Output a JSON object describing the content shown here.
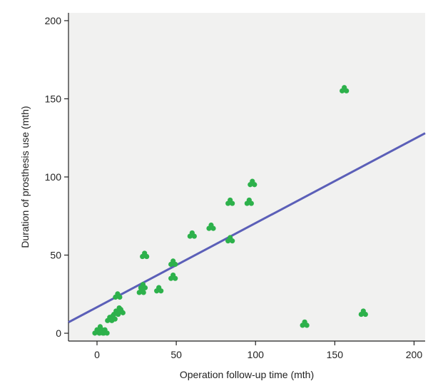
{
  "chart_data": {
    "type": "scatter",
    "title": "",
    "xlabel": "Operation follow-up time (mth)",
    "ylabel": "Duration of prosthesis use (mth)",
    "xlim": [
      -18,
      207
    ],
    "ylim": [
      -5,
      205
    ],
    "x_ticks": [
      0,
      50,
      100,
      150,
      200
    ],
    "y_ticks": [
      0,
      50,
      100,
      150,
      200
    ],
    "grid": false,
    "colors": {
      "plot_background": "#f1f1f0",
      "point": "#2db14b",
      "fit_line": "#5b5fb8",
      "axis": "#222222"
    },
    "points": [
      {
        "x": 0,
        "y": 1
      },
      {
        "x": 2,
        "y": 3
      },
      {
        "x": 3,
        "y": 1
      },
      {
        "x": 5,
        "y": 1
      },
      {
        "x": 8,
        "y": 9
      },
      {
        "x": 10,
        "y": 10
      },
      {
        "x": 12,
        "y": 13
      },
      {
        "x": 13,
        "y": 24
      },
      {
        "x": 14,
        "y": 15
      },
      {
        "x": 15,
        "y": 14
      },
      {
        "x": 28,
        "y": 27
      },
      {
        "x": 29,
        "y": 30
      },
      {
        "x": 30,
        "y": 50
      },
      {
        "x": 39,
        "y": 28
      },
      {
        "x": 48,
        "y": 36
      },
      {
        "x": 48,
        "y": 45
      },
      {
        "x": 60,
        "y": 63
      },
      {
        "x": 72,
        "y": 68
      },
      {
        "x": 84,
        "y": 84
      },
      {
        "x": 84,
        "y": 60
      },
      {
        "x": 96,
        "y": 84
      },
      {
        "x": 98,
        "y": 96
      },
      {
        "x": 131,
        "y": 6
      },
      {
        "x": 156,
        "y": 156
      },
      {
        "x": 168,
        "y": 13
      }
    ],
    "fit_line": {
      "x": [
        -18,
        207
      ],
      "y": [
        7,
        128
      ]
    }
  }
}
